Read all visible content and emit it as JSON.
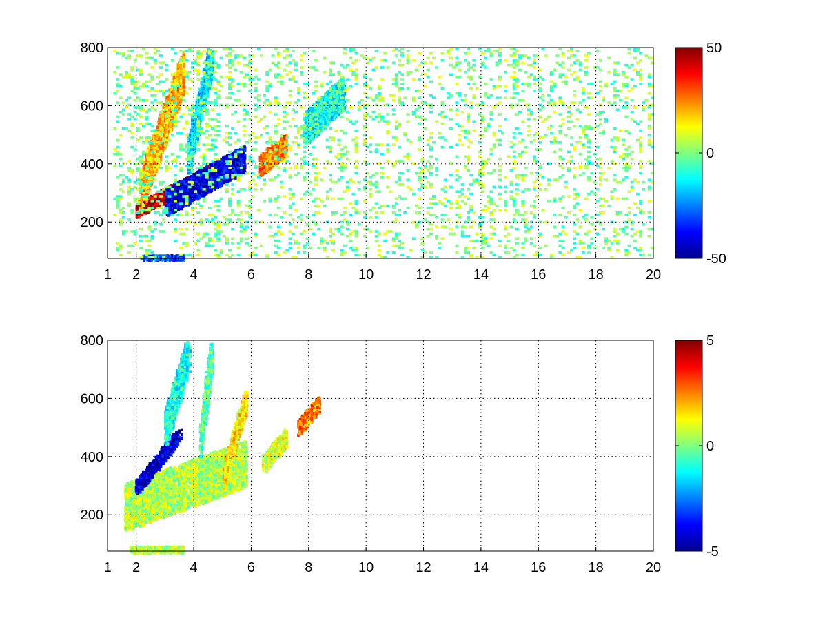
{
  "chart_data": [
    {
      "type": "heatmap",
      "title": "",
      "xlabel": "",
      "ylabel": "",
      "xlim": [
        1,
        20
      ],
      "ylim": [
        75,
        800
      ],
      "x_ticks": [
        "1",
        "2",
        "4",
        "6",
        "8",
        "10",
        "12",
        "14",
        "16",
        "18",
        "20"
      ],
      "y_ticks": [
        "200",
        "400",
        "600",
        "800"
      ],
      "grid": true,
      "colormap": "jet",
      "colorbar": {
        "min": -50,
        "max": 50,
        "ticks": [
          "50",
          "0",
          "-50"
        ]
      },
      "features": [
        {
          "x0": 2.0,
          "y0": 245,
          "x1": 4.8,
          "y1": 390,
          "w": 22,
          "v": 45
        },
        {
          "x0": 2.1,
          "y0": 300,
          "x1": 3.6,
          "y1": 720,
          "w": 70,
          "v": 20
        },
        {
          "x0": 3.0,
          "y0": 270,
          "x1": 5.7,
          "y1": 420,
          "w": 45,
          "v": -40
        },
        {
          "x0": 3.8,
          "y0": 430,
          "x1": 4.6,
          "y1": 780,
          "w": 60,
          "v": -15
        },
        {
          "x0": 6.3,
          "y0": 400,
          "x1": 7.2,
          "y1": 470,
          "w": 35,
          "v": 25
        },
        {
          "x0": 7.8,
          "y0": 520,
          "x1": 9.2,
          "y1": 650,
          "w": 55,
          "v": -12
        },
        {
          "x0": 2.2,
          "y0": 78,
          "x1": 3.6,
          "y1": 80,
          "w": 10,
          "v": -30
        }
      ],
      "noise": {
        "x": [
          1.2,
          20
        ],
        "y": [
          75,
          800
        ],
        "range": [
          -12,
          12
        ],
        "density": 0.16
      }
    },
    {
      "type": "heatmap",
      "title": "",
      "xlabel": "",
      "ylabel": "",
      "xlim": [
        1,
        20
      ],
      "ylim": [
        75,
        800
      ],
      "x_ticks": [
        "1",
        "2",
        "4",
        "6",
        "8",
        "10",
        "12",
        "14",
        "16",
        "18",
        "20"
      ],
      "y_ticks": [
        "200",
        "400",
        "600",
        "800"
      ],
      "grid": true,
      "colormap": "jet",
      "colorbar": {
        "min": -5,
        "max": 5,
        "ticks": [
          "5",
          "0",
          "-5"
        ]
      },
      "features": [
        {
          "x0": 1.6,
          "y0": 230,
          "x1": 5.8,
          "y1": 380,
          "w": 80,
          "v": 0.5
        },
        {
          "x0": 2.0,
          "y0": 300,
          "x1": 3.5,
          "y1": 480,
          "w": 25,
          "v": -4.2
        },
        {
          "x0": 3.0,
          "y0": 500,
          "x1": 3.8,
          "y1": 760,
          "w": 60,
          "v": -1.0
        },
        {
          "x0": 4.2,
          "y0": 450,
          "x1": 4.6,
          "y1": 760,
          "w": 50,
          "v": -0.3
        },
        {
          "x0": 5.0,
          "y0": 330,
          "x1": 5.8,
          "y1": 600,
          "w": 40,
          "v": 1.5
        },
        {
          "x0": 6.4,
          "y0": 380,
          "x1": 7.2,
          "y1": 470,
          "w": 30,
          "v": 1.0
        },
        {
          "x0": 7.6,
          "y0": 500,
          "x1": 8.4,
          "y1": 590,
          "w": 25,
          "v": 2.5
        },
        {
          "x0": 1.8,
          "y0": 85,
          "x1": 3.6,
          "y1": 85,
          "w": 10,
          "v": 0.6
        }
      ],
      "noise": null
    }
  ]
}
